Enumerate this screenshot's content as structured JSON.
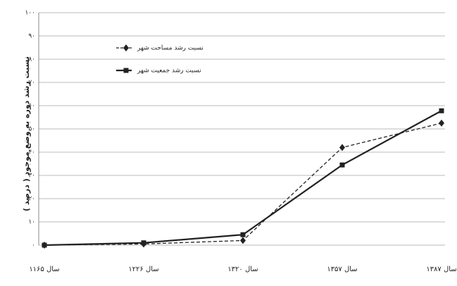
{
  "chart_data": {
    "type": "line",
    "y_label": "نسبت رشد دوره به وضع موجود ( درصد )",
    "categories": [
      "سال ۱۱۶۵",
      "سال ۱۲۲۶",
      "سال ۱۳۲۰",
      "سال ۱۳۵۷",
      "سال ۱۳۸۷"
    ],
    "series": [
      {
        "name": "نسبت رشد مساحت شهر",
        "color": "#222222",
        "line_style": "dashed",
        "marker": "diamond",
        "values": [
          0,
          0.5,
          2,
          42,
          52.5
        ]
      },
      {
        "name": "نسبت رشد جمعیت شهر",
        "color": "#222222",
        "line_style": "solid",
        "marker": "square",
        "values": [
          0,
          1,
          4.5,
          34.5,
          57.8
        ]
      }
    ],
    "ylim": [
      0,
      100
    ],
    "yticks": [
      {
        "value": 0,
        "label": "۰"
      },
      {
        "value": 10,
        "label": "۱۰"
      },
      {
        "value": 20,
        "label": "۲۰"
      },
      {
        "value": 30,
        "label": "۳۰"
      },
      {
        "value": 40,
        "label": "۴۰"
      },
      {
        "value": 50,
        "label": "۵۰"
      },
      {
        "value": 60,
        "label": "۶۰"
      },
      {
        "value": 70,
        "label": "۷۰"
      },
      {
        "value": 80,
        "label": "۸۰"
      },
      {
        "value": 90,
        "label": "۹۰"
      },
      {
        "value": 100,
        "label": "۱۰۰"
      }
    ],
    "grid": true,
    "legend": "upper-left"
  }
}
